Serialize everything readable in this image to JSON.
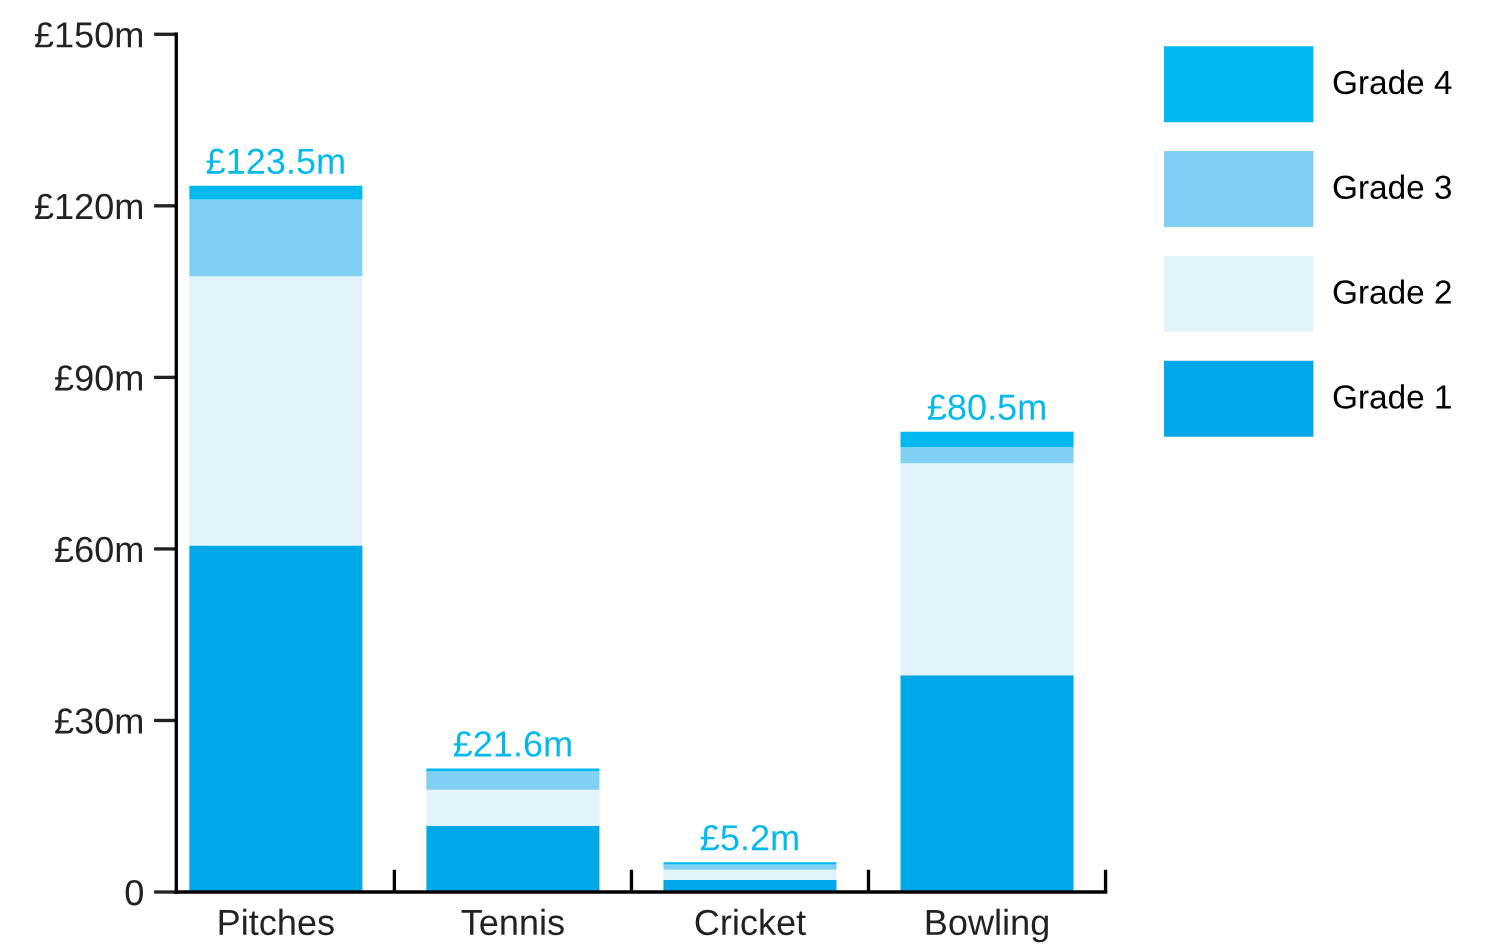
{
  "chart_data": {
    "type": "bar",
    "stacked": true,
    "categories": [
      "Pitches",
      "Tennis",
      "Cricket",
      "Bowling"
    ],
    "series": [
      {
        "name": "Grade 1",
        "color": "#00a8e8",
        "values": [
          60.6,
          11.6,
          2.1,
          37.9
        ]
      },
      {
        "name": "Grade 2",
        "color": "#e3f3fb",
        "values": [
          47.1,
          6.3,
          1.8,
          37.1
        ]
      },
      {
        "name": "Grade 3",
        "color": "#80d0f4",
        "values": [
          13.4,
          3.2,
          0.9,
          2.8
        ]
      },
      {
        "name": "Grade 4",
        "color": "#00b9ef",
        "values": [
          2.4,
          0.5,
          0.4,
          2.7
        ]
      }
    ],
    "totals": [
      "£123.5m",
      "£21.6m",
      "£5.2m",
      "£80.5m"
    ],
    "ylim": [
      0,
      150
    ],
    "yticks": [
      {
        "value": 0,
        "label": "0"
      },
      {
        "value": 30,
        "label": "£30m"
      },
      {
        "value": 60,
        "label": "£60m"
      },
      {
        "value": 90,
        "label": "£90m"
      },
      {
        "value": 120,
        "label": "£120m"
      },
      {
        "value": 150,
        "label": "£150m"
      }
    ],
    "grid": false,
    "legend": "right"
  }
}
